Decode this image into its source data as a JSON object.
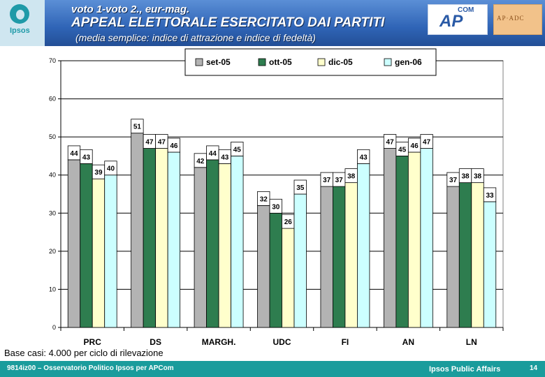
{
  "header": {
    "logo_text": "Ipsos",
    "kicker": "voto 1-voto 2., eur-mag.",
    "title": "APPEAL ELETTORALE ESERCITATO DAI PARTITI",
    "subtitle": "(media semplice: indice di attrazione e indice di fedeltà)",
    "apcom_big": "AP",
    "apcom_small": "COM",
    "brand2_text": "AP·ADC"
  },
  "chart_data": {
    "type": "bar",
    "title": "",
    "xlabel": "",
    "ylabel": "",
    "ylim": [
      0,
      70
    ],
    "yticks": [
      "0",
      "10",
      "20",
      "30",
      "40",
      "50",
      "60",
      "70"
    ],
    "grid": true,
    "legend_position": "top",
    "categories": [
      "PRC",
      "DS",
      "MARGH.",
      "UDC",
      "FI",
      "AN",
      "LN"
    ],
    "series": [
      {
        "name": "set-05",
        "color": "#b3b3b3",
        "values": [
          44,
          51,
          42,
          32,
          37,
          47,
          37
        ]
      },
      {
        "name": "ott-05",
        "color": "#2e7d4f",
        "values": [
          43,
          47,
          44,
          30,
          37,
          45,
          38
        ]
      },
      {
        "name": "dic-05",
        "color": "#ffffcc",
        "values": [
          39,
          47,
          43,
          26,
          38,
          46,
          38
        ]
      },
      {
        "name": "gen-06",
        "color": "#ccffff",
        "values": [
          40,
          46,
          45,
          35,
          43,
          47,
          33
        ]
      }
    ]
  },
  "notes": {
    "base": "Base casi: 4.000 per ciclo di rilevazione"
  },
  "footer": {
    "left": "9814iz00 – Osservatorio Politico Ipsos per APCom",
    "mid": "Ipsos Public Affairs",
    "page": "14"
  }
}
